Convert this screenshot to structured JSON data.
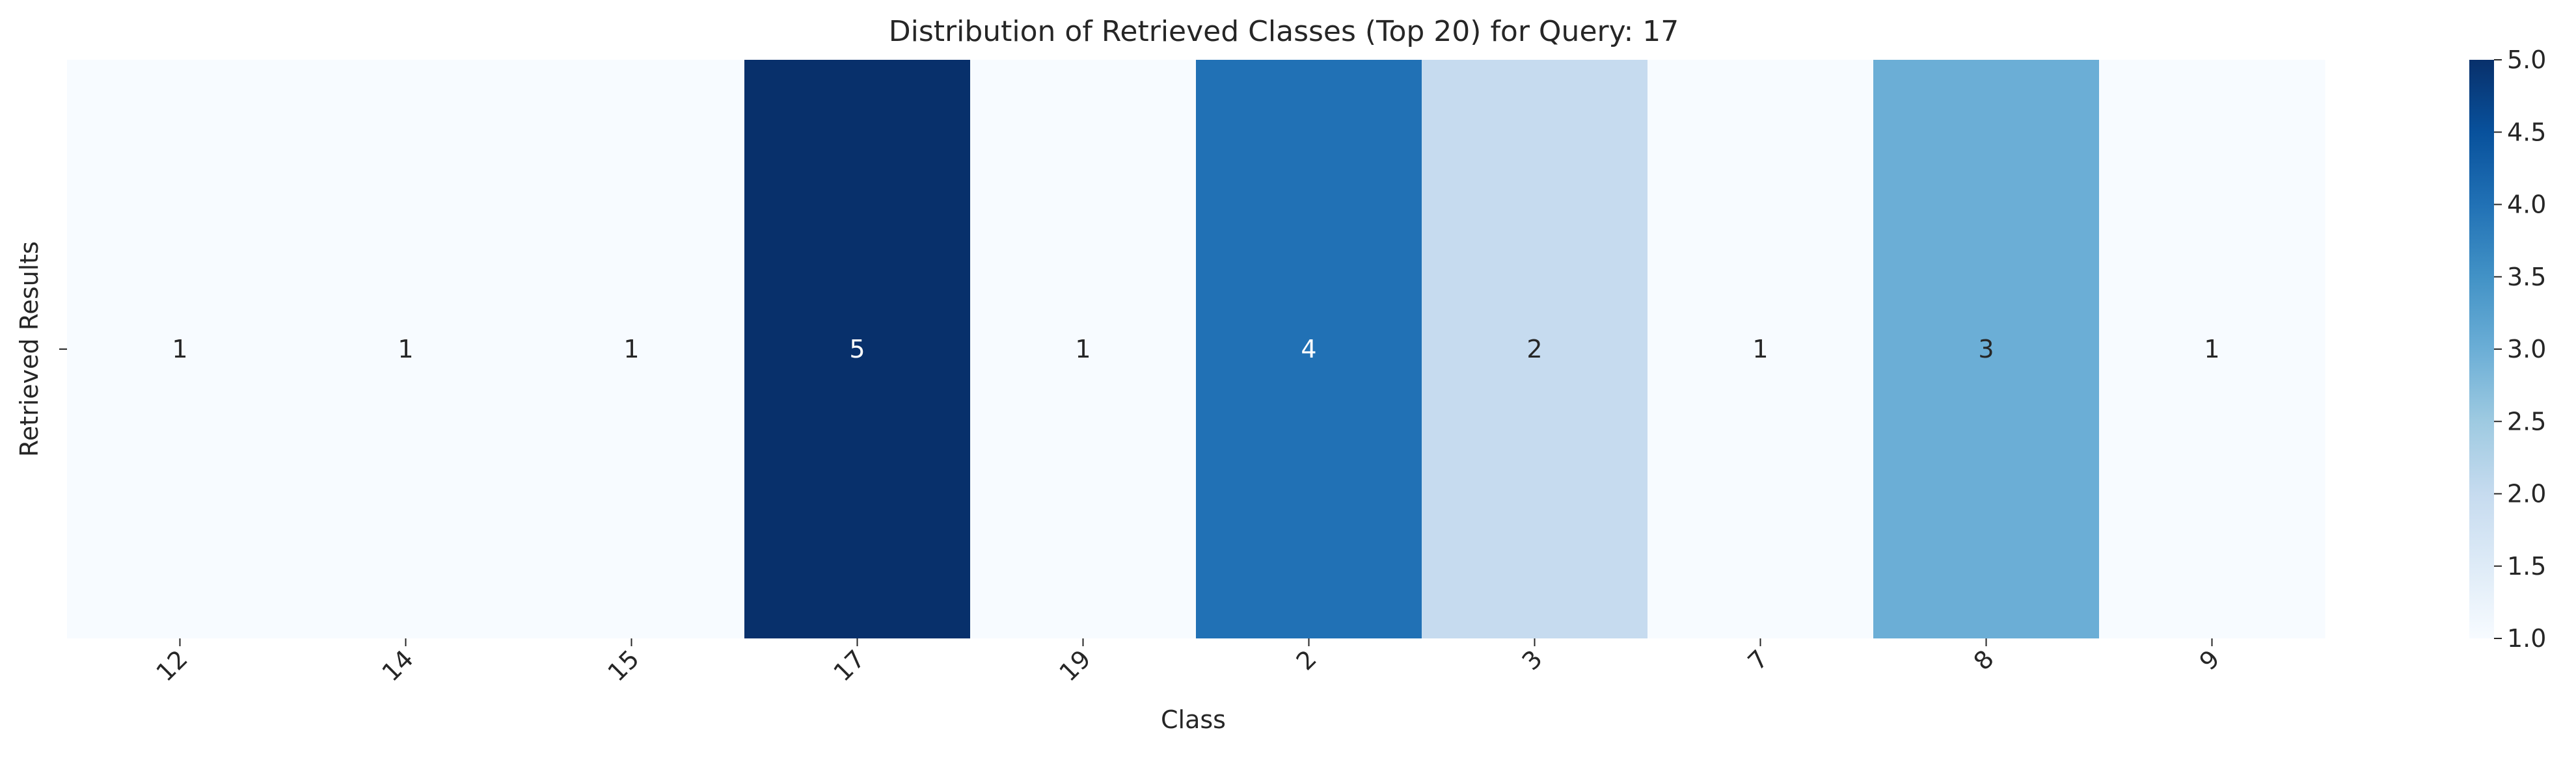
{
  "chart_data": {
    "type": "heatmap",
    "title": "Distribution of Retrieved Classes (Top 20) for Query: 17",
    "xlabel": "Class",
    "ylabel": "Retrieved Results",
    "categories": [
      "12",
      "14",
      "15",
      "17",
      "19",
      "2",
      "3",
      "7",
      "8",
      "9"
    ],
    "rows": [
      ""
    ],
    "values": [
      [
        1,
        1,
        1,
        5,
        1,
        4,
        2,
        1,
        3,
        1
      ]
    ],
    "colormap": "Blues",
    "colorbar": {
      "range": [
        1.0,
        5.0
      ],
      "ticks": [
        "1.0",
        "1.5",
        "2.0",
        "2.5",
        "3.0",
        "3.5",
        "4.0",
        "4.5",
        "5.0"
      ]
    },
    "colors": {
      "low": "#f7fbff",
      "high": "#08306b",
      "annotation_dark": "#262626",
      "annotation_light": "#ffffff"
    }
  }
}
